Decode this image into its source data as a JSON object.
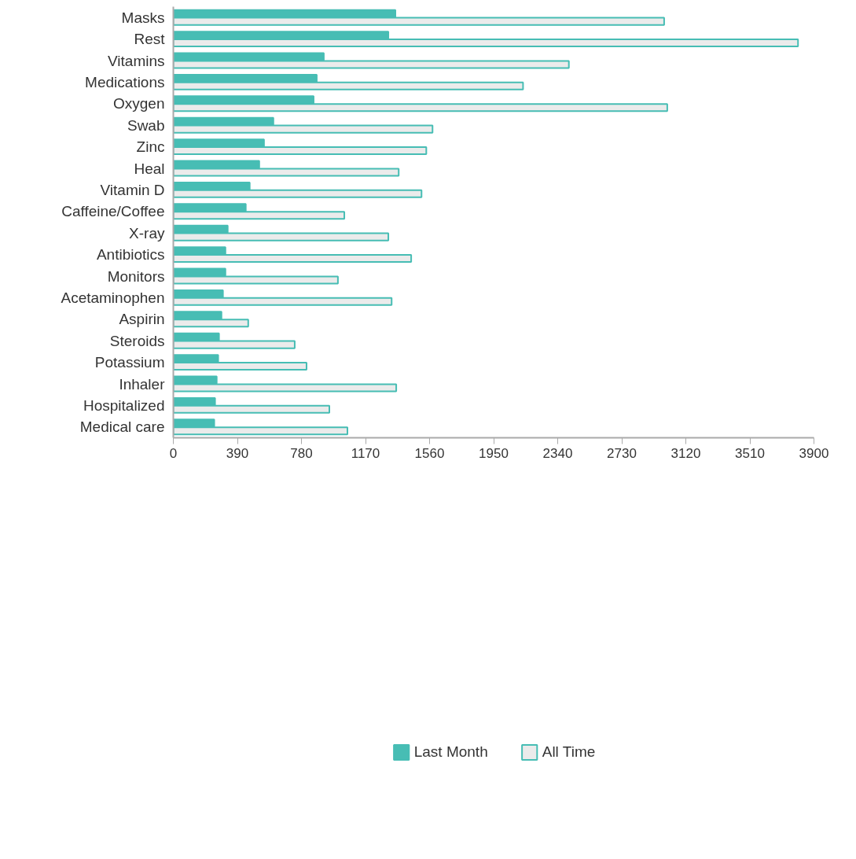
{
  "chart_data": {
    "type": "bar",
    "orientation": "horizontal",
    "categories": [
      "Masks",
      "Rest",
      "Vitamins",
      "Medications",
      "Oxygen",
      "Swab",
      "Zinc",
      "Heal",
      "Vitamin D",
      "Caffeine/Coffee",
      "X-ray",
      "Antibiotics",
      "Monitors",
      "Acetaminophen",
      "Aspirin",
      "Steroids",
      "Potassium",
      "Inhaler",
      "Hospitalized",
      "Medical care"
    ],
    "series": [
      {
        "name": "Last Month",
        "color": "#47bdb4",
        "values": [
          1352,
          1309,
          916,
          873,
          854,
          609,
          552,
          523,
          465,
          441,
          331,
          317,
          317,
          302,
          293,
          278,
          273,
          264,
          254,
          249
        ]
      },
      {
        "name": "All Time",
        "color": "#ebebeb",
        "values": [
          2988,
          3803,
          2408,
          2129,
          3007,
          1578,
          1540,
          1372,
          1511,
          1041,
          1309,
          1448,
          1002,
          1329,
          456,
          739,
          811,
          1357,
          950,
          1060
        ]
      }
    ],
    "xlim": [
      0,
      3900
    ],
    "xticks": [
      0,
      390,
      780,
      1170,
      1560,
      1950,
      2340,
      2730,
      3120,
      3510,
      3900
    ],
    "grid": false,
    "legend": "bottom"
  }
}
